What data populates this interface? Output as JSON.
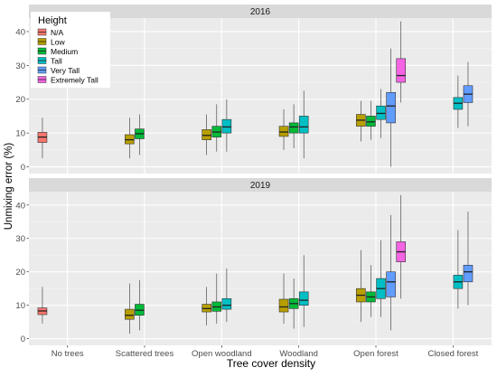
{
  "chart_data": {
    "type": "boxplot",
    "xlabel": "Tree cover density",
    "ylabel": "Unmixing error (%)",
    "ylim": [
      -2,
      44
    ],
    "yticks": [
      0,
      10,
      20,
      30,
      40
    ],
    "categories": [
      "No trees",
      "Scattered trees",
      "Open woodland",
      "Woodland",
      "Open forest",
      "Closed forest"
    ],
    "legend": {
      "title": "Height",
      "position": "top-left",
      "items": [
        {
          "label": "N/A",
          "color": "#F8766D"
        },
        {
          "label": "Low",
          "color": "#B79F00"
        },
        {
          "label": "Medium",
          "color": "#00BA38"
        },
        {
          "label": "Tall",
          "color": "#00BFC4"
        },
        {
          "label": "Very Tall",
          "color": "#619CFF"
        },
        {
          "label": "Extremely Tall",
          "color": "#F564E3"
        }
      ]
    },
    "panels": [
      {
        "title": "2016",
        "boxes": [
          {
            "category": 0,
            "height": 0,
            "min": 2.5,
            "q1": 7.2,
            "median": 8.8,
            "q3": 10.2,
            "max": 14.5
          },
          {
            "category": 1,
            "height": 1,
            "min": 2.5,
            "q1": 6.8,
            "median": 8.0,
            "q3": 9.5,
            "max": 14.5
          },
          {
            "category": 1,
            "height": 2,
            "min": 3.5,
            "q1": 8.3,
            "median": 9.8,
            "q3": 11.2,
            "max": 15.5
          },
          {
            "category": 2,
            "height": 1,
            "min": 3.5,
            "q1": 8.0,
            "median": 9.3,
            "q3": 11.0,
            "max": 15.5
          },
          {
            "category": 2,
            "height": 2,
            "min": 4.5,
            "q1": 8.8,
            "median": 10.3,
            "q3": 12.0,
            "max": 18.5
          },
          {
            "category": 2,
            "height": 3,
            "min": 4.5,
            "q1": 10.0,
            "median": 11.8,
            "q3": 14.0,
            "max": 20.0
          },
          {
            "category": 3,
            "height": 1,
            "min": 5.0,
            "q1": 9.0,
            "median": 10.3,
            "q3": 12.0,
            "max": 17.0
          },
          {
            "category": 3,
            "height": 2,
            "min": 5.5,
            "q1": 10.0,
            "median": 11.8,
            "q3": 13.0,
            "max": 18.5
          },
          {
            "category": 3,
            "height": 3,
            "min": 2.5,
            "q1": 10.0,
            "median": 11.8,
            "q3": 15.0,
            "max": 22.5
          },
          {
            "category": 4,
            "height": 1,
            "min": 7.5,
            "q1": 12.0,
            "median": 13.8,
            "q3": 15.5,
            "max": 19.5
          },
          {
            "category": 4,
            "height": 2,
            "min": 8.0,
            "q1": 12.0,
            "median": 13.3,
            "q3": 15.0,
            "max": 19.5
          },
          {
            "category": 4,
            "height": 3,
            "min": 8.5,
            "q1": 14.0,
            "median": 15.8,
            "q3": 18.0,
            "max": 23.0
          },
          {
            "category": 4,
            "height": 4,
            "min": 0.0,
            "q1": 13.0,
            "median": 18.0,
            "q3": 22.0,
            "max": 35.0
          },
          {
            "category": 4,
            "height": 5,
            "min": 19.0,
            "q1": 25.0,
            "median": 27.0,
            "q3": 32.0,
            "max": 43.0
          },
          {
            "category": 5,
            "height": 3,
            "min": 11.5,
            "q1": 17.0,
            "median": 18.8,
            "q3": 20.5,
            "max": 27.0
          },
          {
            "category": 5,
            "height": 4,
            "min": 12.0,
            "q1": 19.0,
            "median": 21.5,
            "q3": 24.0,
            "max": 31.0
          }
        ]
      },
      {
        "title": "2019",
        "boxes": [
          {
            "category": 0,
            "height": 0,
            "min": 4.5,
            "q1": 7.2,
            "median": 8.3,
            "q3": 9.2,
            "max": 15.5
          },
          {
            "category": 1,
            "height": 1,
            "min": 1.5,
            "q1": 5.8,
            "median": 7.0,
            "q3": 8.8,
            "max": 16.5
          },
          {
            "category": 1,
            "height": 2,
            "min": 2.5,
            "q1": 7.0,
            "median": 8.5,
            "q3": 10.3,
            "max": 17.5
          },
          {
            "category": 2,
            "height": 1,
            "min": 4.0,
            "q1": 8.0,
            "median": 9.0,
            "q3": 10.3,
            "max": 15.5
          },
          {
            "category": 2,
            "height": 2,
            "min": 4.5,
            "q1": 8.2,
            "median": 9.5,
            "q3": 11.0,
            "max": 19.5
          },
          {
            "category": 2,
            "height": 3,
            "min": 5.0,
            "q1": 8.8,
            "median": 10.0,
            "q3": 12.0,
            "max": 21.0
          },
          {
            "category": 3,
            "height": 1,
            "min": 4.5,
            "q1": 8.0,
            "median": 9.5,
            "q3": 11.8,
            "max": 19.5
          },
          {
            "category": 3,
            "height": 2,
            "min": 3.0,
            "q1": 9.0,
            "median": 10.5,
            "q3": 12.0,
            "max": 18.0
          },
          {
            "category": 3,
            "height": 3,
            "min": 3.5,
            "q1": 10.0,
            "median": 11.5,
            "q3": 14.0,
            "max": 25.0
          },
          {
            "category": 4,
            "height": 1,
            "min": 5.0,
            "q1": 11.0,
            "median": 13.0,
            "q3": 15.0,
            "max": 26.5
          },
          {
            "category": 4,
            "height": 2,
            "min": 6.5,
            "q1": 11.0,
            "median": 12.5,
            "q3": 14.0,
            "max": 22.0
          },
          {
            "category": 4,
            "height": 3,
            "min": 6.5,
            "q1": 12.0,
            "median": 15.0,
            "q3": 18.0,
            "max": 29.5
          },
          {
            "category": 4,
            "height": 4,
            "min": 2.5,
            "q1": 12.5,
            "median": 17.0,
            "q3": 20.0,
            "max": 37.0
          },
          {
            "category": 4,
            "height": 5,
            "min": 12.0,
            "q1": 23.0,
            "median": 26.0,
            "q3": 29.0,
            "max": 43.0
          },
          {
            "category": 5,
            "height": 3,
            "min": 9.0,
            "q1": 15.0,
            "median": 17.0,
            "q3": 19.0,
            "max": 32.5
          },
          {
            "category": 5,
            "height": 4,
            "min": 10.0,
            "q1": 17.0,
            "median": 20.0,
            "q3": 22.0,
            "max": 38.0
          }
        ]
      }
    ]
  }
}
